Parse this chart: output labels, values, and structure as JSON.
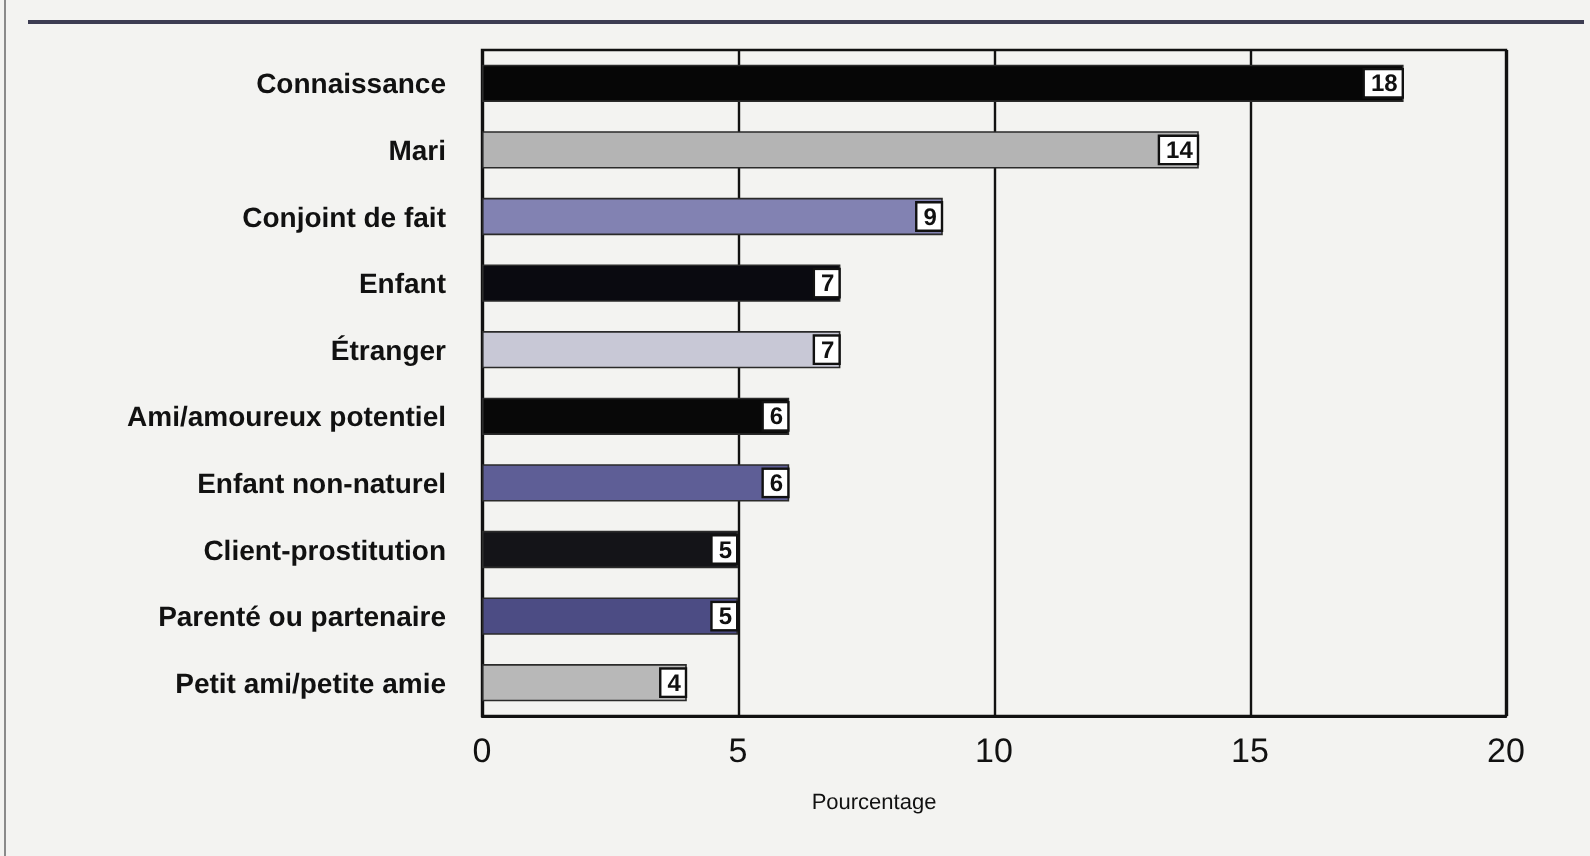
{
  "chart_data": {
    "type": "bar",
    "orientation": "horizontal",
    "categories": [
      "Connaissance",
      "Mari",
      "Conjoint de fait",
      "Enfant",
      "Étranger",
      "Ami/amoureux potentiel",
      "Enfant non-naturel",
      "Client-prostitution",
      "Parenté ou partenaire",
      "Petit ami/petite amie"
    ],
    "values": [
      18,
      14,
      9,
      7,
      7,
      6,
      6,
      5,
      5,
      4
    ],
    "colors": [
      "#060606",
      "#b4b4b4",
      "#8282b2",
      "#0a0a10",
      "#c8c8d6",
      "#080808",
      "#5e5e96",
      "#141418",
      "#4c4c84",
      "#b8b8b8"
    ],
    "xlabel": "Pourcentage",
    "xlim": [
      0,
      20
    ],
    "xticks": [
      0,
      5,
      10,
      15,
      20
    ],
    "grid": "x",
    "data_labels": true
  }
}
